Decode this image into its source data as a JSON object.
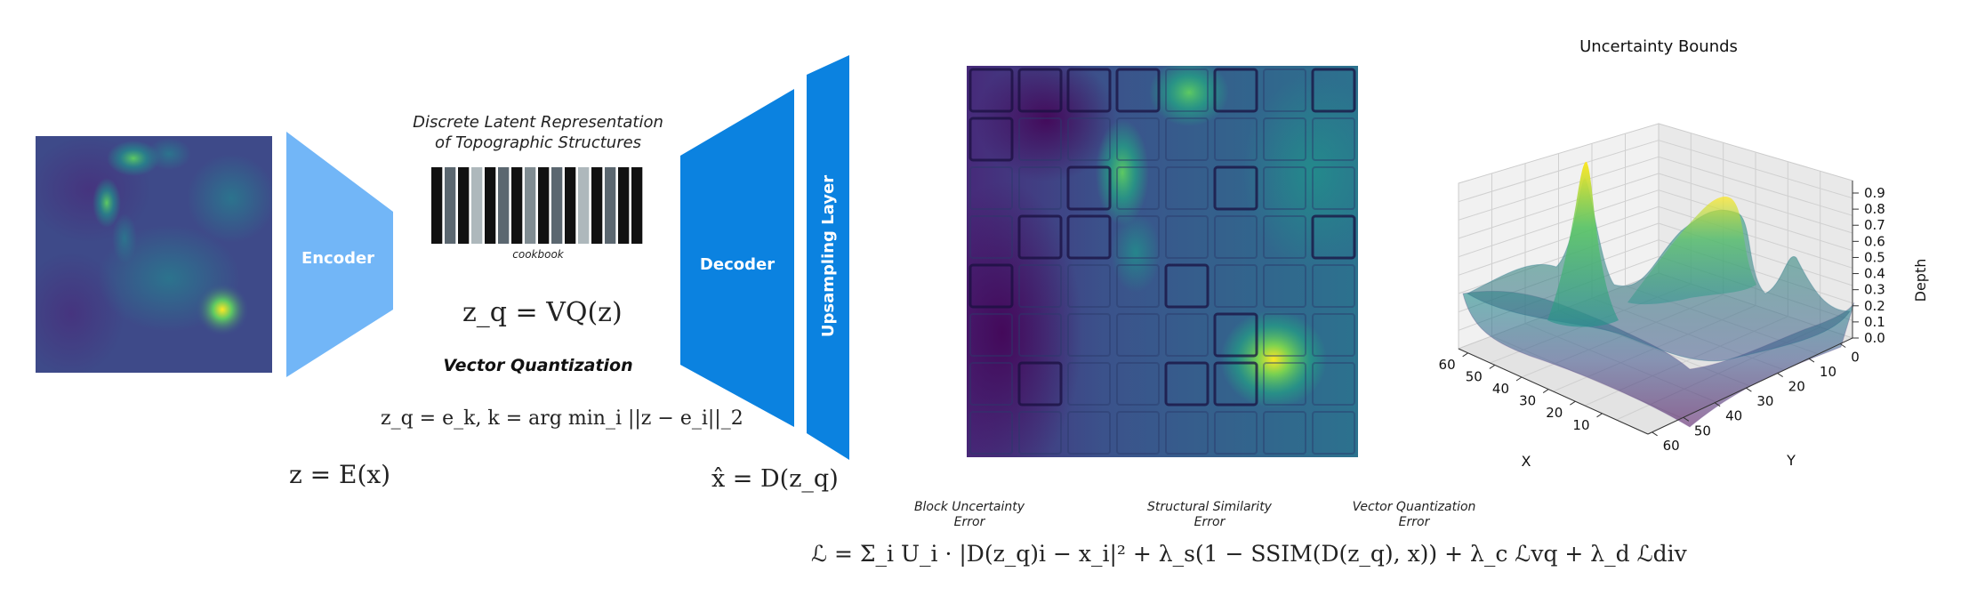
{
  "diagram": {
    "encoder_label": "Encoder",
    "decoder_label": "Decoder",
    "upsampling_label": "Upsampling Layer",
    "latent_title_line1": "Discrete Latent Representation",
    "latent_title_line2": "of Topographic Structures",
    "cookbook_label": "cookbook",
    "vq_heading": "Vector Quantization",
    "eq_vq": "z_q = VQ(z)",
    "eq_nearest": "z_q = e_k,    k = arg min_i ||z − e_i||_2",
    "eq_encoder": "z = E(x)",
    "eq_decoder": "x̂ = D(z_q)",
    "loss_labels": {
      "block_uncertainty": [
        "Block Uncertainty",
        "Error"
      ],
      "structural_similarity": [
        "Structural Similarity",
        "Error"
      ],
      "vector_quantization": [
        "Vector Quantization",
        "Error"
      ]
    },
    "eq_loss": "ℒ = Σ_i U_i · |D(z_q)i − x_i|² + λ_s(1 − SSIM(D(z_q), x)) + λ_c ℒvq + λ_d ℒdiv"
  },
  "colors": {
    "encoder": "#72b6f7",
    "decoder": "#0b82e0",
    "heatmap_low": "#440154",
    "heatmap_mid": "#21918c",
    "heatmap_high": "#fde725"
  },
  "cookbook_bars": [
    "#111111",
    "#5b6770",
    "#111111",
    "#aeb8bc",
    "#111111",
    "#5b6770",
    "#111111",
    "#808c92",
    "#111111",
    "#5b6770",
    "#111111",
    "#aeb8bc",
    "#111111",
    "#5b6770",
    "#111111",
    "#111111"
  ],
  "chart_data": {
    "type": "surface3d",
    "title": "Uncertainty Bounds",
    "xlabel": "X",
    "ylabel": "Y",
    "zlabel": "Depth",
    "xticks": [
      10,
      20,
      30,
      40,
      50,
      60
    ],
    "yticks": [
      0,
      10,
      20,
      30,
      40,
      50,
      60
    ],
    "xtick_labels": [
      "10",
      "20",
      "30",
      "40",
      "50",
      "60"
    ],
    "ytick_labels": [
      "0",
      "10",
      "20",
      "30",
      "40",
      "50",
      "60"
    ],
    "zticks": [
      "0.0",
      "0.1",
      "0.2",
      "0.3",
      "0.4",
      "0.5",
      "0.6",
      "0.7",
      "0.8",
      "0.9"
    ],
    "zlim": [
      0,
      0.9
    ]
  }
}
